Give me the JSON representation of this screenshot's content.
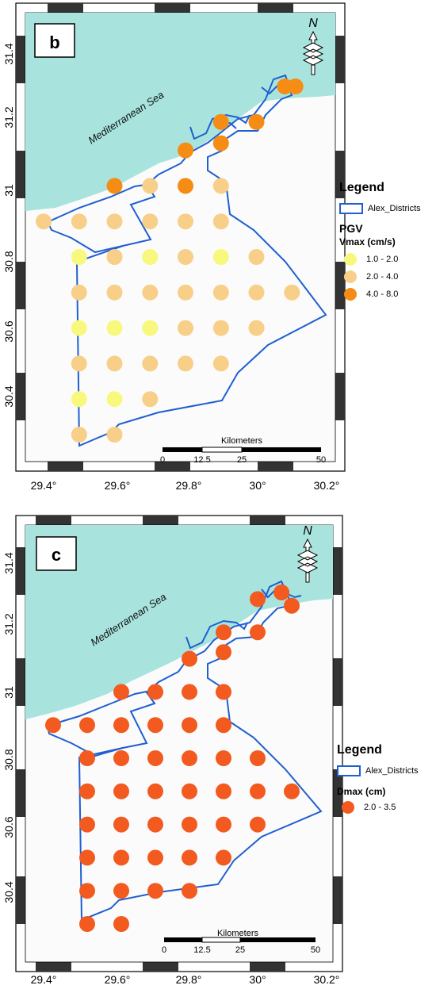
{
  "colors": {
    "sea": "#a8e4dd",
    "boundary": "#1f5fd0",
    "frame_dark": "#333333",
    "pgv_low": "#f8f87c",
    "pgv_mid": "#f8cf88",
    "pgv_high": "#f58c14",
    "dmax": "#f25a1f"
  },
  "panels": [
    {
      "label": "b",
      "sea_label": "Mediterranean Sea",
      "north_label": "N",
      "x_ticks": [
        "29.4°",
        "29.6°",
        "29.8°",
        "30°",
        "30.2°"
      ],
      "y_ticks": [
        "31.4",
        "31.2",
        "31",
        "30.8",
        "30.6",
        "30.4"
      ],
      "scalebar": {
        "title": "Kilometers",
        "ticks": [
          "0",
          "12.5",
          "25",
          "50"
        ]
      },
      "legend": {
        "title": "Legend",
        "boundary_label": "Alex_Districts",
        "heading": "PGV",
        "subheading": "Vmax (cm/s)",
        "classes": [
          {
            "label": "1.0 - 2.0",
            "color_key": "pgv_low"
          },
          {
            "label": "2.0 - 4.0",
            "color_key": "pgv_mid"
          },
          {
            "label": "4.0 - 8.0",
            "color_key": "pgv_high"
          }
        ]
      }
    },
    {
      "label": "c",
      "sea_label": "Mediterranean Sea",
      "north_label": "N",
      "x_ticks": [
        "29.4°",
        "29.6°",
        "29.8°",
        "30°",
        "30.2°"
      ],
      "y_ticks": [
        "31.4",
        "31.2",
        "31",
        "30.8",
        "30.6",
        "30.4"
      ],
      "scalebar": {
        "title": "Kilometers",
        "ticks": [
          "0",
          "12.5",
          "25",
          "50"
        ]
      },
      "legend": {
        "title": "Legend",
        "boundary_label": "Alex_Districts",
        "heading": "Dmax (cm)",
        "classes": [
          {
            "label": "2.0 - 3.5",
            "color_key": "dmax"
          }
        ]
      }
    }
  ],
  "pgv_points": [
    {
      "lon": 30.08,
      "lat": 31.28,
      "c": "pgv_high"
    },
    {
      "lon": 30.11,
      "lat": 31.28,
      "c": "pgv_high"
    },
    {
      "lon": 29.9,
      "lat": 31.18,
      "c": "pgv_high"
    },
    {
      "lon": 30.0,
      "lat": 31.18,
      "c": "pgv_high"
    },
    {
      "lon": 29.8,
      "lat": 31.1,
      "c": "pgv_high"
    },
    {
      "lon": 29.9,
      "lat": 31.12,
      "c": "pgv_high"
    },
    {
      "lon": 29.6,
      "lat": 31.0,
      "c": "pgv_high"
    },
    {
      "lon": 29.7,
      "lat": 31.0,
      "c": "pgv_mid"
    },
    {
      "lon": 29.8,
      "lat": 31.0,
      "c": "pgv_high"
    },
    {
      "lon": 29.9,
      "lat": 31.0,
      "c": "pgv_mid"
    },
    {
      "lon": 29.4,
      "lat": 30.9,
      "c": "pgv_mid"
    },
    {
      "lon": 29.5,
      "lat": 30.9,
      "c": "pgv_mid"
    },
    {
      "lon": 29.6,
      "lat": 30.9,
      "c": "pgv_mid"
    },
    {
      "lon": 29.7,
      "lat": 30.9,
      "c": "pgv_mid"
    },
    {
      "lon": 29.8,
      "lat": 30.9,
      "c": "pgv_mid"
    },
    {
      "lon": 29.9,
      "lat": 30.9,
      "c": "pgv_mid"
    },
    {
      "lon": 29.5,
      "lat": 30.8,
      "c": "pgv_low"
    },
    {
      "lon": 29.6,
      "lat": 30.8,
      "c": "pgv_mid"
    },
    {
      "lon": 29.7,
      "lat": 30.8,
      "c": "pgv_low"
    },
    {
      "lon": 29.8,
      "lat": 30.8,
      "c": "pgv_mid"
    },
    {
      "lon": 29.9,
      "lat": 30.8,
      "c": "pgv_low"
    },
    {
      "lon": 30.0,
      "lat": 30.8,
      "c": "pgv_mid"
    },
    {
      "lon": 29.5,
      "lat": 30.7,
      "c": "pgv_mid"
    },
    {
      "lon": 29.6,
      "lat": 30.7,
      "c": "pgv_mid"
    },
    {
      "lon": 29.7,
      "lat": 30.7,
      "c": "pgv_mid"
    },
    {
      "lon": 29.8,
      "lat": 30.7,
      "c": "pgv_mid"
    },
    {
      "lon": 29.9,
      "lat": 30.7,
      "c": "pgv_mid"
    },
    {
      "lon": 30.0,
      "lat": 30.7,
      "c": "pgv_mid"
    },
    {
      "lon": 30.1,
      "lat": 30.7,
      "c": "pgv_mid"
    },
    {
      "lon": 29.5,
      "lat": 30.6,
      "c": "pgv_low"
    },
    {
      "lon": 29.6,
      "lat": 30.6,
      "c": "pgv_low"
    },
    {
      "lon": 29.7,
      "lat": 30.6,
      "c": "pgv_low"
    },
    {
      "lon": 29.8,
      "lat": 30.6,
      "c": "pgv_mid"
    },
    {
      "lon": 29.9,
      "lat": 30.6,
      "c": "pgv_mid"
    },
    {
      "lon": 30.0,
      "lat": 30.6,
      "c": "pgv_mid"
    },
    {
      "lon": 29.5,
      "lat": 30.5,
      "c": "pgv_mid"
    },
    {
      "lon": 29.6,
      "lat": 30.5,
      "c": "pgv_mid"
    },
    {
      "lon": 29.7,
      "lat": 30.5,
      "c": "pgv_mid"
    },
    {
      "lon": 29.8,
      "lat": 30.5,
      "c": "pgv_mid"
    },
    {
      "lon": 29.9,
      "lat": 30.5,
      "c": "pgv_mid"
    },
    {
      "lon": 29.5,
      "lat": 30.4,
      "c": "pgv_low"
    },
    {
      "lon": 29.6,
      "lat": 30.4,
      "c": "pgv_low"
    },
    {
      "lon": 29.7,
      "lat": 30.4,
      "c": "pgv_mid"
    },
    {
      "lon": 29.5,
      "lat": 30.3,
      "c": "pgv_mid"
    },
    {
      "lon": 29.6,
      "lat": 30.3,
      "c": "pgv_mid"
    }
  ],
  "dmax_points": [
    {
      "lon": 30.0,
      "lat": 31.28
    },
    {
      "lon": 30.07,
      "lat": 31.3
    },
    {
      "lon": 30.1,
      "lat": 31.26
    },
    {
      "lon": 29.9,
      "lat": 31.18
    },
    {
      "lon": 30.0,
      "lat": 31.18
    },
    {
      "lon": 29.8,
      "lat": 31.1
    },
    {
      "lon": 29.9,
      "lat": 31.12
    },
    {
      "lon": 29.6,
      "lat": 31.0
    },
    {
      "lon": 29.7,
      "lat": 31.0
    },
    {
      "lon": 29.8,
      "lat": 31.0
    },
    {
      "lon": 29.9,
      "lat": 31.0
    },
    {
      "lon": 29.4,
      "lat": 30.9
    },
    {
      "lon": 29.5,
      "lat": 30.9
    },
    {
      "lon": 29.6,
      "lat": 30.9
    },
    {
      "lon": 29.7,
      "lat": 30.9
    },
    {
      "lon": 29.8,
      "lat": 30.9
    },
    {
      "lon": 29.9,
      "lat": 30.9
    },
    {
      "lon": 29.5,
      "lat": 30.8
    },
    {
      "lon": 29.6,
      "lat": 30.8
    },
    {
      "lon": 29.7,
      "lat": 30.8
    },
    {
      "lon": 29.8,
      "lat": 30.8
    },
    {
      "lon": 29.9,
      "lat": 30.8
    },
    {
      "lon": 30.0,
      "lat": 30.8
    },
    {
      "lon": 29.5,
      "lat": 30.7
    },
    {
      "lon": 29.6,
      "lat": 30.7
    },
    {
      "lon": 29.7,
      "lat": 30.7
    },
    {
      "lon": 29.8,
      "lat": 30.7
    },
    {
      "lon": 29.9,
      "lat": 30.7
    },
    {
      "lon": 30.0,
      "lat": 30.7
    },
    {
      "lon": 30.1,
      "lat": 30.7
    },
    {
      "lon": 29.5,
      "lat": 30.6
    },
    {
      "lon": 29.6,
      "lat": 30.6
    },
    {
      "lon": 29.7,
      "lat": 30.6
    },
    {
      "lon": 29.8,
      "lat": 30.6
    },
    {
      "lon": 29.9,
      "lat": 30.6
    },
    {
      "lon": 30.0,
      "lat": 30.6
    },
    {
      "lon": 29.5,
      "lat": 30.5
    },
    {
      "lon": 29.6,
      "lat": 30.5
    },
    {
      "lon": 29.7,
      "lat": 30.5
    },
    {
      "lon": 29.8,
      "lat": 30.5
    },
    {
      "lon": 29.9,
      "lat": 30.5
    },
    {
      "lon": 29.5,
      "lat": 30.4
    },
    {
      "lon": 29.6,
      "lat": 30.4
    },
    {
      "lon": 29.7,
      "lat": 30.4
    },
    {
      "lon": 29.8,
      "lat": 30.4
    },
    {
      "lon": 29.5,
      "lat": 30.3
    },
    {
      "lon": 29.6,
      "lat": 30.3
    }
  ]
}
